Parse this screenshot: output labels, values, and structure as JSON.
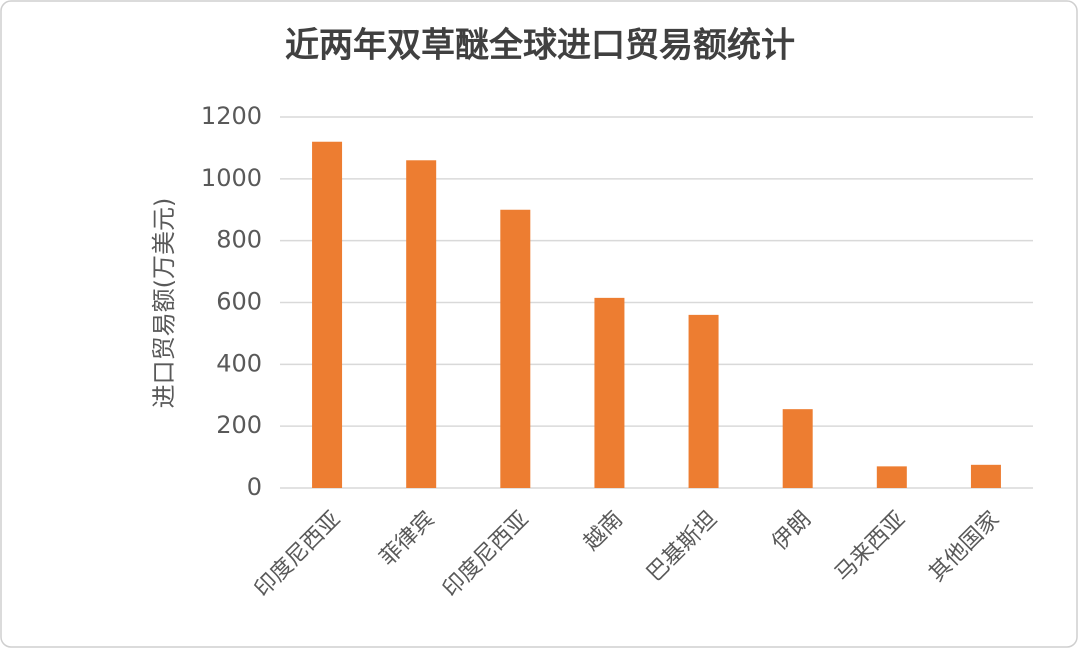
{
  "chart_data": {
    "type": "bar",
    "title": "近两年双草醚全球进口贸易额统计",
    "y_label": "进口贸易额(万美元)",
    "categories": [
      "印度尼西亚",
      "菲律宾",
      "印度尼西亚",
      "越南",
      "巴基斯坦",
      "伊朗",
      "马来西亚",
      "其他国家"
    ],
    "values": [
      1120,
      1060,
      900,
      615,
      560,
      255,
      70,
      75
    ],
    "color": "#ed7d31",
    "ylim": [
      0,
      1200
    ],
    "yticks": [
      0,
      200,
      400,
      600,
      800,
      1000,
      1200
    ],
    "grid": true
  }
}
